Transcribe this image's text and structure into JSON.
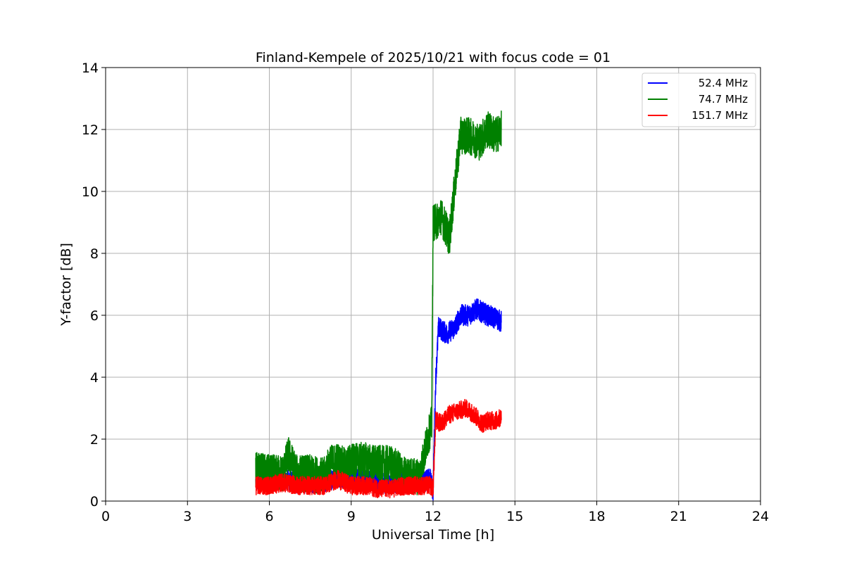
{
  "chart_data": {
    "type": "line",
    "title": "Finland-Kempele of 2025/10/21 with focus code = 01",
    "xlabel": "Universal Time [h]",
    "ylabel": "Y-factor [dB]",
    "xlim": [
      0,
      24
    ],
    "ylim": [
      0,
      14
    ],
    "xticks": [
      "0",
      "3",
      "6",
      "9",
      "12",
      "15",
      "18",
      "21",
      "24"
    ],
    "yticks": [
      "0",
      "2",
      "4",
      "6",
      "8",
      "10",
      "12",
      "14"
    ],
    "grid": true,
    "legend_position": "top-right",
    "series": [
      {
        "name": "52.4 MHz",
        "color": "#0000ff",
        "noise": 0.35,
        "x": [
          5.5,
          6.0,
          6.5,
          7.0,
          7.5,
          8.0,
          8.5,
          9.0,
          9.5,
          10.0,
          10.5,
          11.0,
          11.5,
          11.9,
          12.0,
          12.1,
          12.2,
          12.5,
          12.8,
          13.0,
          13.3,
          13.6,
          14.0,
          14.3,
          14.5
        ],
        "y": [
          0.6,
          0.8,
          0.7,
          0.6,
          0.6,
          0.6,
          0.8,
          0.7,
          0.7,
          0.6,
          0.6,
          0.6,
          0.6,
          0.7,
          0.3,
          4.0,
          5.6,
          5.4,
          5.6,
          6.0,
          6.0,
          6.2,
          6.0,
          5.9,
          5.8
        ]
      },
      {
        "name": "74.7 MHz",
        "color": "#008000",
        "noise": 0.6,
        "x": [
          5.5,
          6.0,
          6.5,
          6.7,
          7.0,
          7.5,
          8.0,
          8.2,
          8.5,
          8.8,
          9.0,
          9.5,
          10.0,
          10.5,
          11.0,
          11.5,
          11.8,
          11.95,
          12.0,
          12.1,
          12.3,
          12.6,
          12.8,
          13.0,
          13.3,
          13.7,
          14.0,
          14.3,
          14.5
        ],
        "y": [
          1.0,
          0.9,
          0.9,
          1.5,
          0.9,
          0.9,
          0.8,
          1.2,
          1.3,
          1.1,
          1.3,
          1.3,
          1.2,
          1.2,
          0.8,
          0.8,
          2.0,
          2.5,
          9.0,
          9.0,
          9.2,
          8.5,
          10.2,
          11.8,
          11.8,
          11.6,
          12.0,
          11.8,
          12.0
        ]
      },
      {
        "name": "151.7 MHz",
        "color": "#ff0000",
        "noise": 0.3,
        "x": [
          5.5,
          6.0,
          6.5,
          7.0,
          7.5,
          8.0,
          8.5,
          9.0,
          9.5,
          10.0,
          10.5,
          11.0,
          11.5,
          11.9,
          12.0,
          12.1,
          12.3,
          12.6,
          12.9,
          13.2,
          13.5,
          13.8,
          14.0,
          14.3,
          14.5
        ],
        "y": [
          0.5,
          0.5,
          0.6,
          0.5,
          0.5,
          0.5,
          0.7,
          0.5,
          0.5,
          0.4,
          0.4,
          0.5,
          0.5,
          0.5,
          0.4,
          2.6,
          2.5,
          2.8,
          2.9,
          3.0,
          2.8,
          2.5,
          2.6,
          2.6,
          2.7
        ]
      }
    ]
  }
}
